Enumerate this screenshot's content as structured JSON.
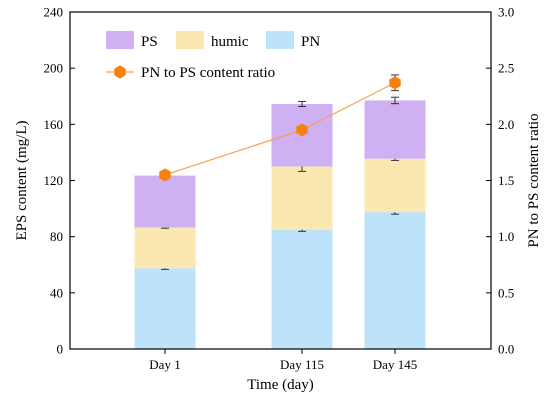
{
  "chart_data": {
    "type": "bar",
    "stacked": true,
    "categories": [
      "Day 1",
      "Day 115",
      "Day 145"
    ],
    "series": [
      {
        "name": "PN",
        "color": "#bde3fb",
        "values": [
          57.5,
          85,
          97.5
        ],
        "errors": [
          0.8,
          1.2,
          1.5
        ]
      },
      {
        "name": "humic",
        "color": "#fbe8b0",
        "values": [
          29,
          45,
          38
        ],
        "errors": [
          0.5,
          3.5,
          1.2
        ]
      },
      {
        "name": "PS",
        "color": "#cfb0f2",
        "values": [
          37,
          44.5,
          41.5
        ],
        "errors": [
          1.2,
          1.8,
          2.3
        ]
      }
    ],
    "line_series": {
      "name": "PN to PS content ratio",
      "color": "#f5a154",
      "marker_color": "#f5820f",
      "axis": "right",
      "values": [
        1.55,
        1.95,
        2.37
      ],
      "errors": [
        0.02,
        0.03,
        0.07
      ]
    },
    "xlabel": "Time (day)",
    "ylabel": "EPS content (mg/L)",
    "ylabel_right": "PN to PS content ratio",
    "ylim": [
      0,
      240
    ],
    "ylim_right": [
      0,
      3.0
    ],
    "yticks": [
      "0",
      "40",
      "80",
      "120",
      "160",
      "200",
      "240"
    ],
    "yticks_right": [
      "0.0",
      "0.5",
      "1.0",
      "1.5",
      "2.0",
      "2.5",
      "3.0"
    ],
    "legend": {
      "position": "top-left",
      "items": [
        "PS",
        "humic",
        "PN",
        "PN to PS content ratio"
      ]
    },
    "grid": false
  }
}
